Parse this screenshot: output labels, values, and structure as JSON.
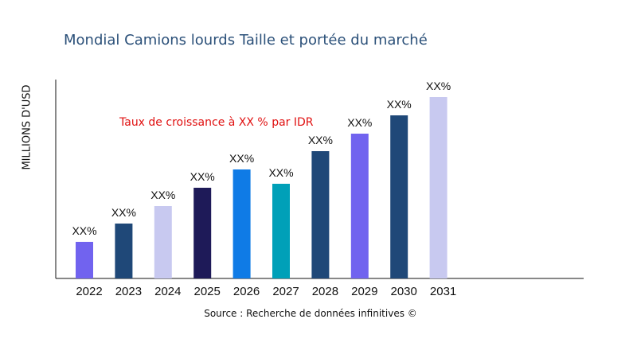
{
  "chart_data": {
    "type": "bar",
    "title": "Mondial Camions lourds Taille et portée du marché",
    "ylabel": "MILLIONS D'USD",
    "xlabel": "",
    "categories": [
      "2022",
      "2023",
      "2024",
      "2025",
      "2026",
      "2027",
      "2028",
      "2029",
      "2030",
      "2031"
    ],
    "values": [
      46,
      69,
      91,
      114,
      137,
      119,
      160,
      182,
      205,
      228
    ],
    "data_labels": [
      "XX%",
      "XX%",
      "XX%",
      "XX%",
      "XX%",
      "XX%",
      "XX%",
      "XX%",
      "XX%",
      "XX%"
    ],
    "colors": [
      "#7163ef",
      "#1f4878",
      "#c8c9f0",
      "#1e1a58",
      "#0f7be6",
      "#00a0b8",
      "#1f4878",
      "#7163ef",
      "#1f4878",
      "#c8c9f0"
    ],
    "ylim": [
      0,
      250
    ],
    "grid": false,
    "annotation": "Taux de croissance à XX % par IDR",
    "source": "Source : Recherche de données infinitives ©"
  }
}
